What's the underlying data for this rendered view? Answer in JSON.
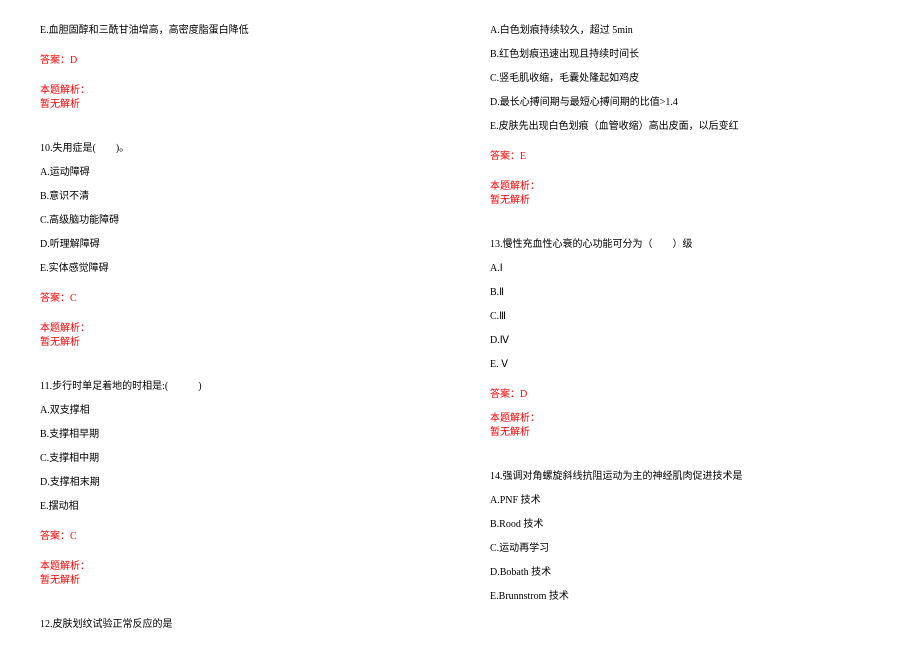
{
  "left": {
    "opt_e_9": "E.血胆固醇和三酰甘油增高，高密度脂蛋白降低",
    "ans_9": "答案：D",
    "expl_label": "本题解析：",
    "expl_none": "暂无解析",
    "q10": "10.失用症是(　　)。",
    "q10_a": "A.运动障碍",
    "q10_b": "B.意识不清",
    "q10_c": "C.高级脑功能障碍",
    "q10_d": "D.听理解障碍",
    "q10_e": "E.实体感觉障碍",
    "ans_10": "答案：C",
    "q11": "11.步行时单足着地的时相是:(　　　)",
    "q11_a": "A.双支撑相",
    "q11_b": "B.支撑相早期",
    "q11_c": "C.支撑相中期",
    "q11_d": "D.支撑相末期",
    "q11_e": "E.摆动相",
    "ans_11": "答案：C",
    "q12": "12.皮肤划纹试验正常反应的是"
  },
  "right": {
    "q12_a": "A.白色划痕持续较久，超过 5min",
    "q12_b": "B.红色划痕迅速出现且持续时间长",
    "q12_c": "C.竖毛肌收缩，毛囊处隆起如鸡皮",
    "q12_d": "D.最长心搏间期与最短心搏间期的比值>1.4",
    "q12_e": "E.皮肤先出现白色划痕（血管收缩）高出皮面，以后变红",
    "ans_12": "答案：E",
    "expl_label": "本题解析：",
    "expl_none": "暂无解析",
    "q13": "13.慢性充血性心衰的心功能可分为（　　）级",
    "q13_a": "A.Ⅰ",
    "q13_b": "B.Ⅱ",
    "q13_c": "C.Ⅲ",
    "q13_d": "D.Ⅳ",
    "q13_e": "E. Ⅴ",
    "ans_13": "答案：D",
    "q14": "14.强调对角螺旋斜线抗阻运动为主的神经肌肉促进技术是",
    "q14_a": "A.PNF 技术",
    "q14_b": "B.Rood 技术",
    "q14_c": "C.运动再学习",
    "q14_d": "D.Bobath 技术",
    "q14_e": "E.Brunnstrom 技术"
  }
}
